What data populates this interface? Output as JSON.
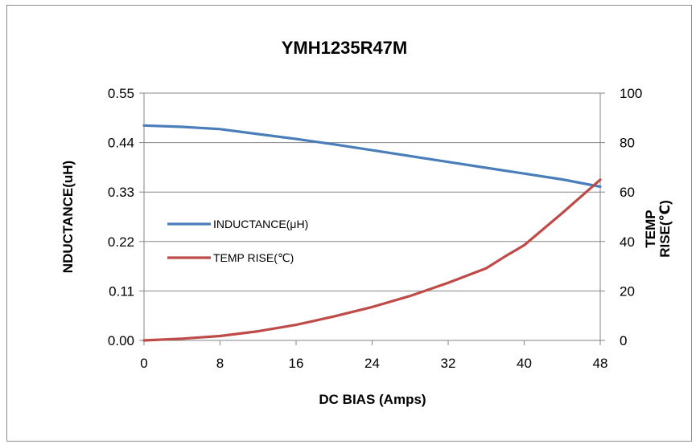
{
  "chart_data": {
    "type": "line",
    "title": "YMH1235R47M",
    "xlabel": "DC BIAS (Amps)",
    "ylabel_left": "NDUCTANCE(uH)",
    "ylabel_right_lines": [
      "TEMP",
      "RISE(℃)"
    ],
    "x_ticks": [
      "0",
      "8",
      "16",
      "24",
      "32",
      "40",
      "48"
    ],
    "y_left_ticks": [
      "0.00",
      "0.11",
      "0.22",
      "0.33",
      "0.44",
      "0.55"
    ],
    "y_right_ticks": [
      "0",
      "20",
      "40",
      "60",
      "80",
      "100"
    ],
    "xlim": [
      0,
      48
    ],
    "ylim_left": [
      0,
      0.55
    ],
    "ylim_right": [
      0,
      100
    ],
    "grid": "horizontal",
    "legend_placement": "center-left",
    "series": [
      {
        "name": "INDUCTANCE(μH)",
        "axis": "left",
        "color": "#4a7ebb",
        "x": [
          0,
          4,
          8,
          12,
          16,
          20,
          24,
          28,
          32,
          36,
          40,
          44,
          48
        ],
        "y": [
          0.478,
          0.475,
          0.47,
          0.459,
          0.448,
          0.436,
          0.423,
          0.41,
          0.397,
          0.384,
          0.371,
          0.358,
          0.342
        ]
      },
      {
        "name": "TEMP RISE(℃)",
        "axis": "right",
        "color": "#be4b48",
        "x": [
          0,
          4,
          8,
          12,
          16,
          20,
          24,
          28,
          32,
          36,
          38,
          40,
          44,
          48
        ],
        "y": [
          0,
          0.7,
          1.8,
          3.7,
          6.3,
          9.7,
          13.5,
          18.0,
          23.3,
          29.2,
          34.0,
          38.5,
          51.5,
          65.0
        ]
      }
    ]
  }
}
